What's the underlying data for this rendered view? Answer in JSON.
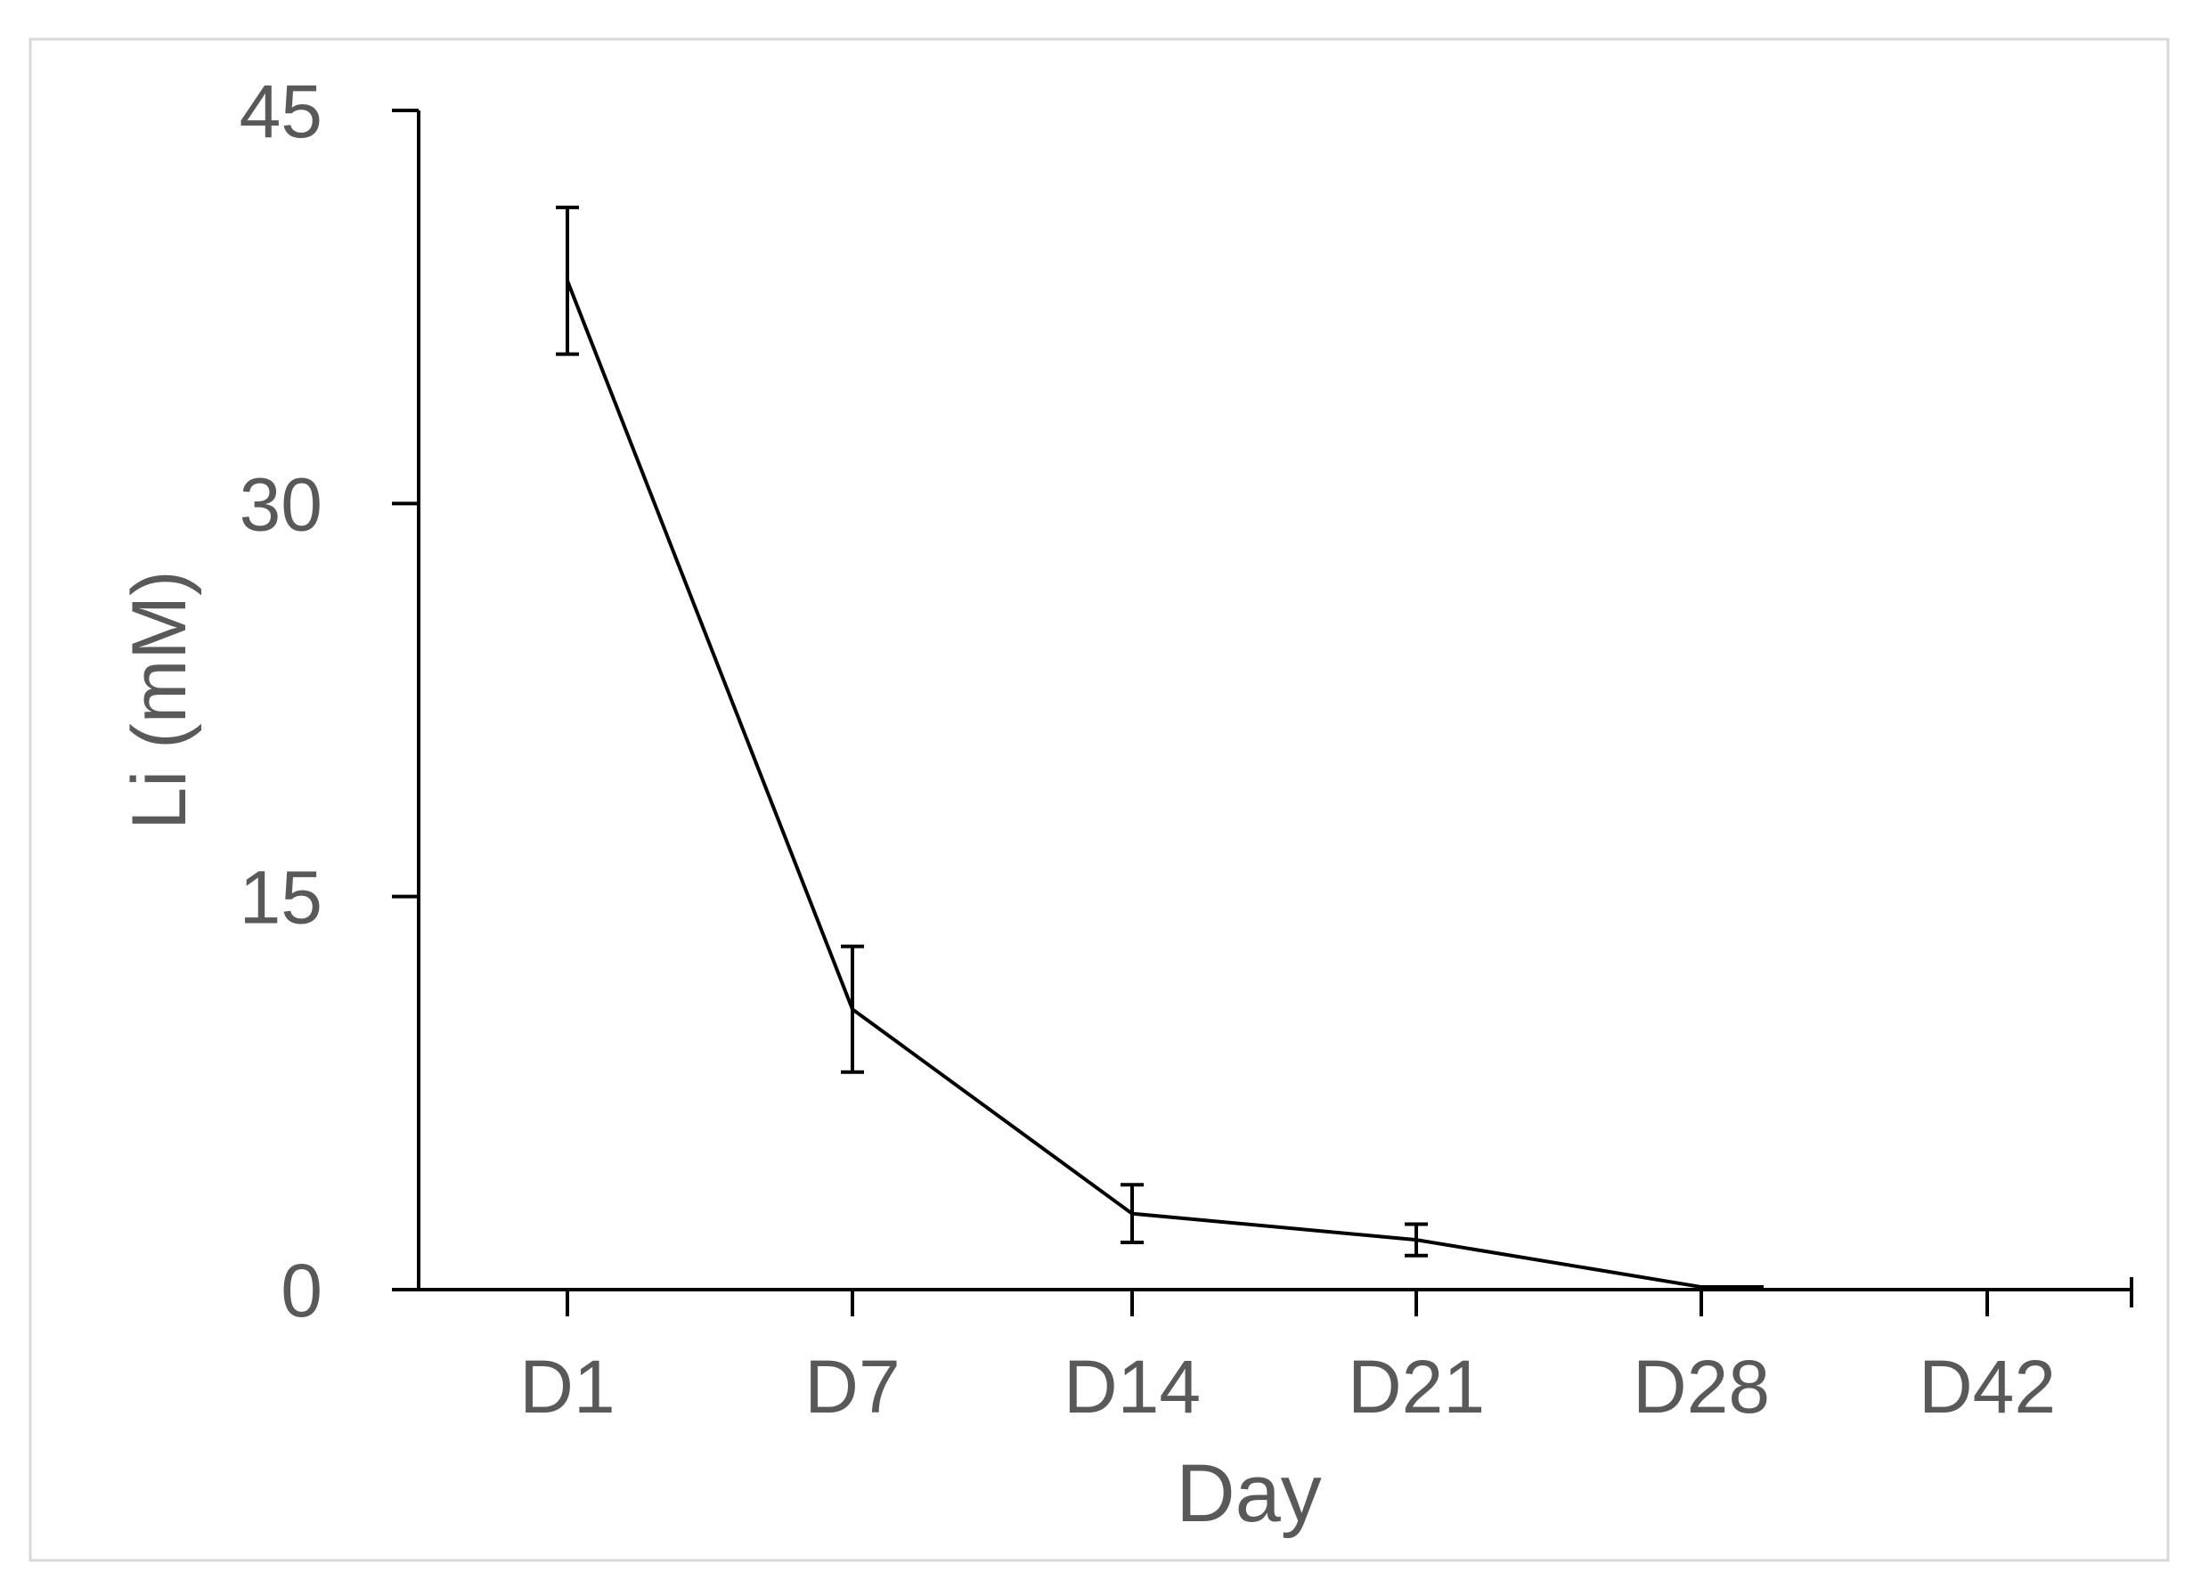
{
  "colors": {
    "background": "#ffffff",
    "frame": "#d9d9d9",
    "axis": "#000000",
    "series": "#000000",
    "text": "#595959"
  },
  "chart_data": {
    "type": "line",
    "title": "",
    "xlabel": "Day",
    "ylabel": "Li (mM)",
    "categories": [
      "D1",
      "D7",
      "D14",
      "D21",
      "D28",
      "D42"
    ],
    "ylim": [
      0,
      45
    ],
    "yticks": [
      "0",
      "15",
      "30",
      "45"
    ],
    "grid": false,
    "legend": "none",
    "error_bars": true,
    "series": [
      {
        "values": [
          38.5,
          10.7,
          2.9,
          1.9,
          0.1,
          null
        ],
        "errors": [
          2.8,
          2.4,
          1.1,
          0.6,
          0.0,
          null
        ]
      }
    ]
  }
}
